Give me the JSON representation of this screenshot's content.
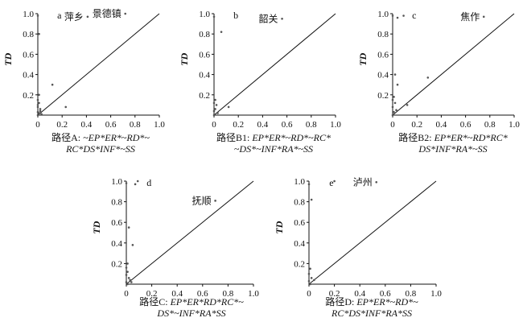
{
  "chart_data": [
    {
      "type": "scatter",
      "panel_label": "a",
      "ylabel": "TD",
      "xlim": [
        0,
        1.0
      ],
      "ylim": [
        0,
        1.0
      ],
      "xticks": [
        "0",
        "0.2",
        "0.4",
        "0.6",
        "0.8",
        "1.0"
      ],
      "yticks": [
        "0.2",
        "0.4",
        "0.6",
        "0.8",
        "1.0"
      ],
      "reference_line": "y=x",
      "caption": {
        "prefix": "路径A: ",
        "line1": "~EP*ER*~RD*~",
        "line2": "RC*DS*INF*~SS"
      },
      "points": [
        {
          "x": 0.0,
          "y": 0.98
        },
        {
          "x": 0.01,
          "y": 0.8
        },
        {
          "x": 0.12,
          "y": 0.3
        },
        {
          "x": 0.23,
          "y": 0.08
        },
        {
          "x": 0.01,
          "y": 0.2
        },
        {
          "x": 0.0,
          "y": 0.15
        },
        {
          "x": 0.01,
          "y": 0.12
        },
        {
          "x": 0.0,
          "y": 0.1
        },
        {
          "x": 0.02,
          "y": 0.06
        },
        {
          "x": 0.0,
          "y": 0.03
        },
        {
          "x": 0.01,
          "y": 0.02
        },
        {
          "x": 0.03,
          "y": 0.01
        },
        {
          "x": 0.0,
          "y": 0.0
        },
        {
          "x": 0.02,
          "y": 0.04
        },
        {
          "x": 0.0,
          "y": 0.08
        },
        {
          "x": 0.41,
          "y": 0.97,
          "label": "萍乡"
        },
        {
          "x": 0.72,
          "y": 1.0,
          "label": "景德镇"
        }
      ]
    },
    {
      "type": "scatter",
      "panel_label": "b",
      "ylabel": "TD",
      "xlim": [
        0,
        1.0
      ],
      "ylim": [
        0,
        1.0
      ],
      "xticks": [
        "0",
        "0.2",
        "0.4",
        "0.6",
        "0.8",
        "1.0"
      ],
      "yticks": [
        "0.2",
        "0.4",
        "0.6",
        "0.8",
        "1.0"
      ],
      "reference_line": "y=x",
      "caption": {
        "prefix": "路径B1: ",
        "line1": "EP*ER*~RD*~RC*",
        "line2": "~DS*~INF*RA*~SS"
      },
      "points": [
        {
          "x": 0.0,
          "y": 0.97
        },
        {
          "x": 0.06,
          "y": 0.82
        },
        {
          "x": 0.01,
          "y": 0.15
        },
        {
          "x": 0.0,
          "y": 0.12
        },
        {
          "x": 0.02,
          "y": 0.1
        },
        {
          "x": 0.01,
          "y": 0.06
        },
        {
          "x": 0.0,
          "y": 0.04
        },
        {
          "x": 0.03,
          "y": 0.02
        },
        {
          "x": 0.0,
          "y": 0.0
        },
        {
          "x": 0.12,
          "y": 0.08
        },
        {
          "x": 0.56,
          "y": 0.95,
          "label": "韶关"
        }
      ]
    },
    {
      "type": "scatter",
      "panel_label": "c",
      "ylabel": "TD",
      "xlim": [
        0,
        1.0
      ],
      "ylim": [
        0,
        1.0
      ],
      "xticks": [
        "0",
        "0.2",
        "0.4",
        "0.6",
        "0.8",
        "1.0"
      ],
      "yticks": [
        "0.2",
        "0.4",
        "0.6",
        "0.8",
        "1.0"
      ],
      "reference_line": "y=x",
      "caption": {
        "prefix": "路径B2: ",
        "line1": "EP*ER*~RD*RC*",
        "line2": "DS*INF*RA*~SS"
      },
      "points": [
        {
          "x": 0.0,
          "y": 0.98
        },
        {
          "x": 0.04,
          "y": 0.96
        },
        {
          "x": 0.09,
          "y": 0.98
        },
        {
          "x": 0.02,
          "y": 0.4
        },
        {
          "x": 0.04,
          "y": 0.3
        },
        {
          "x": 0.29,
          "y": 0.37
        },
        {
          "x": 0.01,
          "y": 0.18
        },
        {
          "x": 0.0,
          "y": 0.15
        },
        {
          "x": 0.02,
          "y": 0.12
        },
        {
          "x": 0.0,
          "y": 0.08
        },
        {
          "x": 0.03,
          "y": 0.05
        },
        {
          "x": 0.01,
          "y": 0.03
        },
        {
          "x": 0.0,
          "y": 0.0
        },
        {
          "x": 0.12,
          "y": 0.1
        },
        {
          "x": 0.75,
          "y": 0.97,
          "label": "焦作"
        }
      ]
    },
    {
      "type": "scatter",
      "panel_label": "d",
      "ylabel": "TD",
      "xlim": [
        0,
        1.0
      ],
      "ylim": [
        0,
        1.0
      ],
      "xticks": [
        "0",
        "0.2",
        "0.4",
        "0.6",
        "0.8",
        "1.0"
      ],
      "yticks": [
        "0.2",
        "0.4",
        "0.6",
        "0.8",
        "1.0"
      ],
      "reference_line": "y=x",
      "caption": {
        "prefix": "路径C: ",
        "line1": "EP*ER*RD*RC*~",
        "line2": "DS*~INF*RA*SS"
      },
      "points": [
        {
          "x": 0.0,
          "y": 0.98
        },
        {
          "x": 0.07,
          "y": 0.97
        },
        {
          "x": 0.09,
          "y": 1.0
        },
        {
          "x": 0.02,
          "y": 0.55
        },
        {
          "x": 0.05,
          "y": 0.38
        },
        {
          "x": 0.01,
          "y": 0.2
        },
        {
          "x": 0.0,
          "y": 0.16
        },
        {
          "x": 0.01,
          "y": 0.12
        },
        {
          "x": 0.0,
          "y": 0.09
        },
        {
          "x": 0.02,
          "y": 0.06
        },
        {
          "x": 0.03,
          "y": 0.04
        },
        {
          "x": 0.0,
          "y": 0.02
        },
        {
          "x": 0.01,
          "y": 0.0
        },
        {
          "x": 0.04,
          "y": 0.02
        },
        {
          "x": 0.7,
          "y": 0.81,
          "label": "抚顺"
        }
      ]
    },
    {
      "type": "scatter",
      "panel_label": "e",
      "ylabel": "TD",
      "xlim": [
        0,
        1.0
      ],
      "ylim": [
        0,
        1.0
      ],
      "xticks": [
        "0",
        "0.2",
        "0.4",
        "0.6",
        "0.8",
        "1.0"
      ],
      "yticks": [
        "0.2",
        "0.4",
        "0.6",
        "0.8",
        "1.0"
      ],
      "reference_line": "y=x",
      "caption": {
        "prefix": "路径D: ",
        "line1": "EP*ER*~RD*~",
        "line2": "RC*DS*INF*RA*SS"
      },
      "points": [
        {
          "x": 0.0,
          "y": 0.97
        },
        {
          "x": 0.2,
          "y": 1.0
        },
        {
          "x": 0.02,
          "y": 0.82
        },
        {
          "x": 0.01,
          "y": 0.15
        },
        {
          "x": 0.0,
          "y": 0.1
        },
        {
          "x": 0.02,
          "y": 0.06
        },
        {
          "x": 0.0,
          "y": 0.03
        },
        {
          "x": 0.04,
          "y": 0.04
        },
        {
          "x": 0.01,
          "y": 0.0
        },
        {
          "x": 0.53,
          "y": 0.99,
          "label": "泸州"
        }
      ]
    }
  ]
}
